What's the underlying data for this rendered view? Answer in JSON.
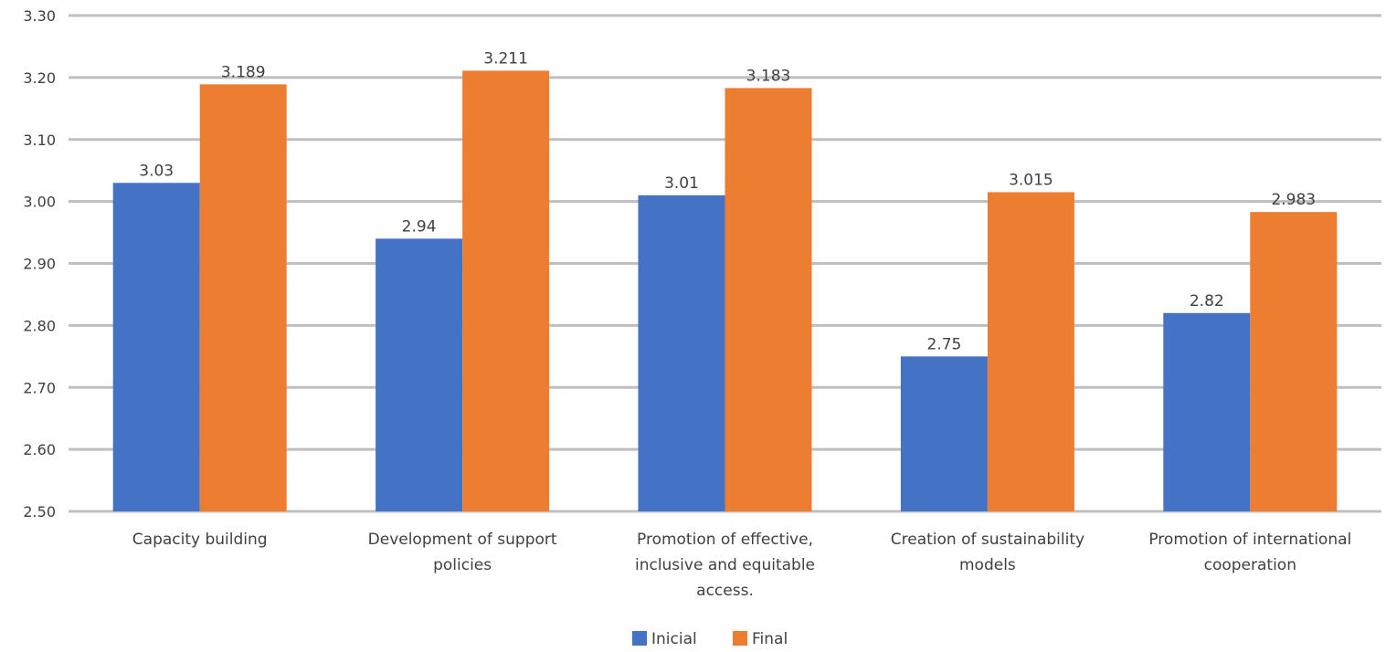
{
  "chart_data": {
    "type": "bar",
    "categories": [
      [
        "Capacity building"
      ],
      [
        "Development of support",
        "policies"
      ],
      [
        "Promotion of effective,",
        "inclusive and equitable",
        "access."
      ],
      [
        "Creation of sustainability",
        "models"
      ],
      [
        "Promotion of international",
        "cooperation"
      ]
    ],
    "series": [
      {
        "name": "Inicial",
        "color": "#4472c4",
        "values": [
          3.03,
          2.94,
          3.01,
          2.75,
          2.82
        ],
        "labels": [
          "3.03",
          "2.94",
          "3.01",
          "2.75",
          "2.82"
        ]
      },
      {
        "name": "Final",
        "color": "#ed7d31",
        "values": [
          3.189,
          3.211,
          3.183,
          3.015,
          2.983
        ],
        "labels": [
          "3.189",
          "3.211",
          "3.183",
          "3.015",
          "2.983"
        ]
      }
    ],
    "ylim": [
      2.5,
      3.3
    ],
    "yticks": [
      "2.50",
      "2.60",
      "2.70",
      "2.80",
      "2.90",
      "3.00",
      "3.10",
      "3.20",
      "3.30"
    ],
    "grid": true,
    "legend_position": "bottom"
  }
}
